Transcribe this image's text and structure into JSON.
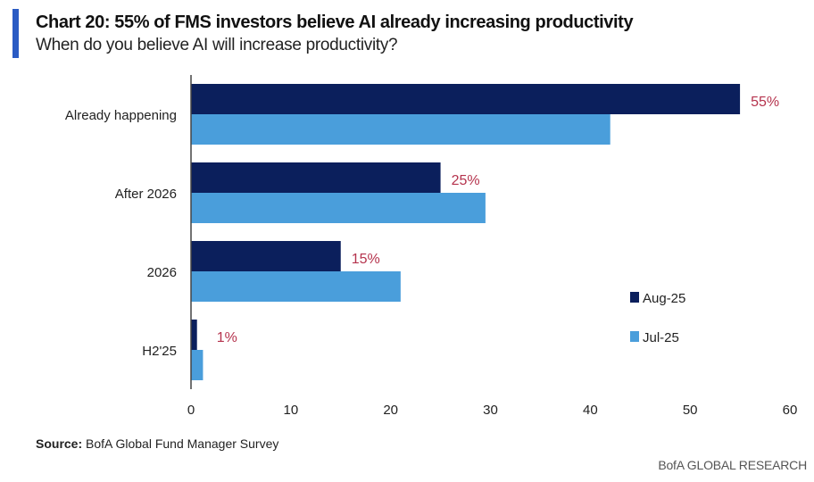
{
  "title": "Chart 20: 55% of FMS investors believe AI already increasing productivity",
  "subtitle": "When do you believe AI will increase productivity?",
  "source_label": "Source:",
  "source_text": " BofA Global Fund Manager Survey",
  "brand": "BofA GLOBAL RESEARCH",
  "colors": {
    "aug": "#0b1f5c",
    "jul": "#4a9edb",
    "label": "#b5334d"
  },
  "chart_data": {
    "type": "bar",
    "orientation": "horizontal",
    "title": "Chart 20: 55% of FMS investors believe AI already increasing productivity",
    "categories": [
      "Already happening",
      "After 2026",
      "2026",
      "H2'25"
    ],
    "series": [
      {
        "name": "Aug-25",
        "values": [
          55,
          25,
          15,
          0.6
        ],
        "data_labels": [
          "55%",
          "25%",
          "15%",
          "1%"
        ]
      },
      {
        "name": "Jul-25",
        "values": [
          42,
          29.5,
          21,
          1.2
        ]
      }
    ],
    "xlim": [
      0,
      60
    ],
    "xticks": [
      "0",
      "10",
      "20",
      "30",
      "40",
      "50",
      "60"
    ],
    "grid": false,
    "legend": "right"
  }
}
